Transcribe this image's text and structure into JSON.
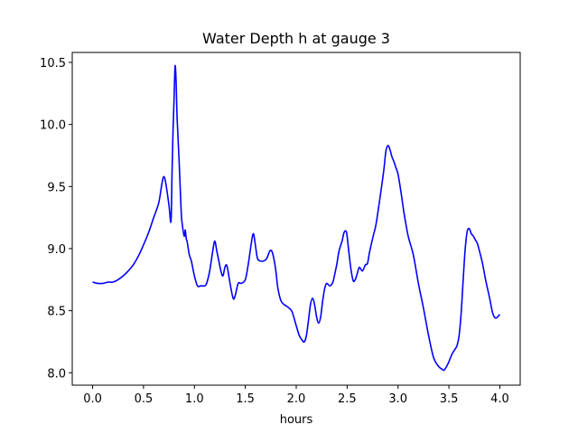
{
  "chart_data": {
    "type": "line",
    "title": "Water Depth h at gauge 3",
    "xlabel": "hours",
    "ylabel": "",
    "xlim": [
      -0.2,
      4.2
    ],
    "ylim": [
      7.9,
      10.58
    ],
    "xticks": [
      0.0,
      0.5,
      1.0,
      1.5,
      2.0,
      2.5,
      3.0,
      3.5,
      4.0
    ],
    "xtick_labels": [
      "0.0",
      "0.5",
      "1.0",
      "1.5",
      "2.0",
      "2.5",
      "3.0",
      "3.5",
      "4.0"
    ],
    "yticks": [
      8.0,
      8.5,
      9.0,
      9.5,
      10.0,
      10.5
    ],
    "ytick_labels": [
      "8.0",
      "8.5",
      "9.0",
      "9.5",
      "10.0",
      "10.5"
    ],
    "grid": false,
    "series": [
      {
        "color": "#0000ff",
        "x": [
          0.0,
          0.05,
          0.1,
          0.15,
          0.2,
          0.25,
          0.3,
          0.35,
          0.4,
          0.45,
          0.5,
          0.55,
          0.6,
          0.65,
          0.68,
          0.7,
          0.72,
          0.75,
          0.77,
          0.78,
          0.79,
          0.8,
          0.81,
          0.82,
          0.83,
          0.85,
          0.87,
          0.88,
          0.9,
          0.91,
          0.92,
          0.93,
          0.95,
          0.97,
          1.0,
          1.03,
          1.06,
          1.08,
          1.1,
          1.12,
          1.15,
          1.18,
          1.2,
          1.22,
          1.24,
          1.26,
          1.28,
          1.3,
          1.32,
          1.35,
          1.38,
          1.4,
          1.43,
          1.46,
          1.5,
          1.53,
          1.56,
          1.58,
          1.6,
          1.62,
          1.65,
          1.68,
          1.71,
          1.74,
          1.76,
          1.78,
          1.8,
          1.82,
          1.85,
          1.88,
          1.9,
          1.93,
          1.96,
          2.0,
          2.03,
          2.06,
          2.08,
          2.1,
          2.12,
          2.14,
          2.16,
          2.18,
          2.2,
          2.22,
          2.24,
          2.26,
          2.28,
          2.3,
          2.33,
          2.36,
          2.38,
          2.4,
          2.42,
          2.45,
          2.47,
          2.49,
          2.5,
          2.52,
          2.54,
          2.56,
          2.58,
          2.6,
          2.62,
          2.65,
          2.68,
          2.7,
          2.72,
          2.75,
          2.78,
          2.8,
          2.83,
          2.86,
          2.88,
          2.9,
          2.92,
          2.94,
          2.96,
          2.98,
          3.0,
          3.03,
          3.06,
          3.1,
          3.15,
          3.2,
          3.25,
          3.3,
          3.35,
          3.4,
          3.43,
          3.45,
          3.47,
          3.5,
          3.53,
          3.56,
          3.58,
          3.6,
          3.62,
          3.64,
          3.66,
          3.68,
          3.7,
          3.72,
          3.74,
          3.76,
          3.78,
          3.8,
          3.83,
          3.86,
          3.9,
          3.93,
          3.96,
          4.0
        ],
        "y": [
          8.73,
          8.72,
          8.72,
          8.73,
          8.73,
          8.75,
          8.78,
          8.82,
          8.87,
          8.94,
          9.03,
          9.13,
          9.25,
          9.37,
          9.52,
          9.58,
          9.52,
          9.35,
          9.22,
          9.6,
          9.95,
          10.2,
          10.47,
          10.35,
          10.05,
          9.7,
          9.3,
          9.2,
          9.1,
          9.15,
          9.08,
          9.05,
          8.95,
          8.9,
          8.78,
          8.7,
          8.7,
          8.7,
          8.7,
          8.72,
          8.82,
          8.98,
          9.06,
          8.98,
          8.9,
          8.82,
          8.78,
          8.85,
          8.86,
          8.72,
          8.6,
          8.62,
          8.72,
          8.72,
          8.75,
          8.88,
          9.05,
          9.12,
          9.02,
          8.92,
          8.9,
          8.9,
          8.92,
          8.98,
          8.98,
          8.92,
          8.82,
          8.68,
          8.58,
          8.55,
          8.54,
          8.52,
          8.49,
          8.38,
          8.3,
          8.26,
          8.25,
          8.3,
          8.42,
          8.55,
          8.6,
          8.55,
          8.45,
          8.4,
          8.45,
          8.58,
          8.68,
          8.72,
          8.7,
          8.73,
          8.8,
          8.88,
          8.98,
          9.06,
          9.13,
          9.14,
          9.1,
          8.95,
          8.82,
          8.74,
          8.75,
          8.8,
          8.85,
          8.82,
          8.87,
          8.88,
          8.97,
          9.08,
          9.18,
          9.28,
          9.45,
          9.63,
          9.78,
          9.83,
          9.8,
          9.74,
          9.7,
          9.65,
          9.6,
          9.45,
          9.28,
          9.1,
          8.95,
          8.72,
          8.52,
          8.3,
          8.12,
          8.05,
          8.03,
          8.02,
          8.04,
          8.09,
          8.15,
          8.19,
          8.22,
          8.3,
          8.48,
          8.75,
          9.0,
          9.14,
          9.16,
          9.12,
          9.1,
          9.07,
          9.04,
          8.98,
          8.88,
          8.75,
          8.6,
          8.48,
          8.44,
          8.47
        ]
      }
    ]
  }
}
